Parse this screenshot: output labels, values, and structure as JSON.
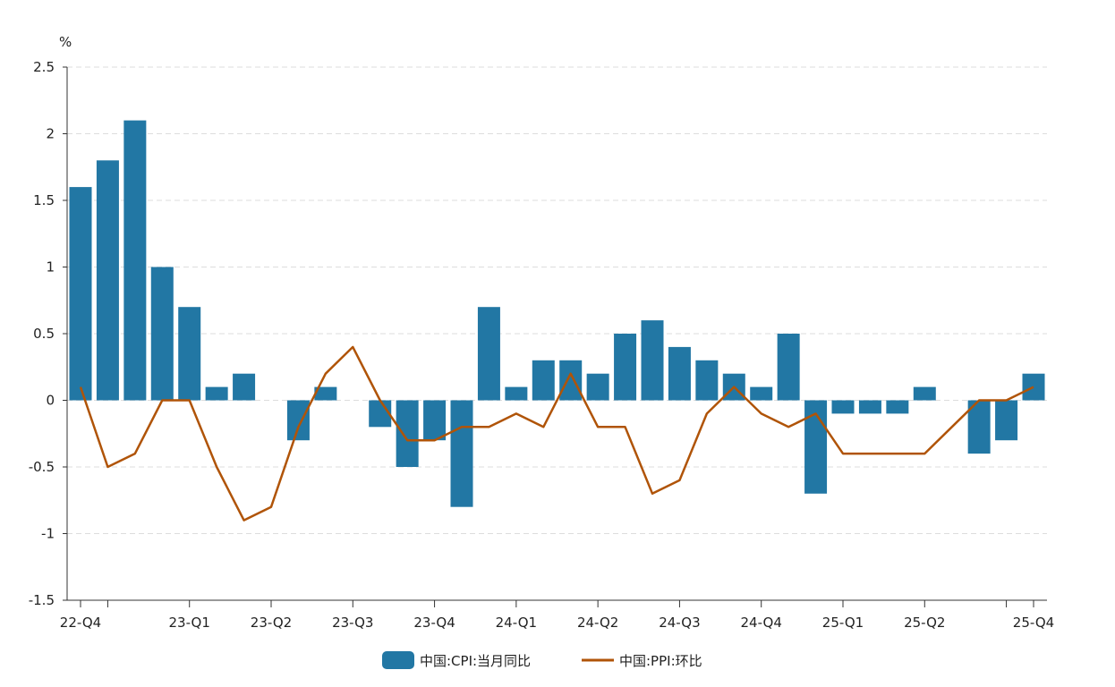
{
  "chart_data": {
    "type": "bar+line",
    "ylabel": "%",
    "ylim": [
      -1.5,
      2.5
    ],
    "yticks": [
      "2.5",
      "2",
      "1.5",
      "1",
      "0.5",
      "0",
      "-0.5",
      "-1",
      "-1.5"
    ],
    "grid": true,
    "n_points": 36,
    "x_labels": [
      {
        "index": 0,
        "label": "22-Q4"
      },
      {
        "index": 4,
        "label": "23-Q1"
      },
      {
        "index": 7,
        "label": "23-Q2"
      },
      {
        "index": 10,
        "label": "23-Q3"
      },
      {
        "index": 13,
        "label": "23-Q4"
      },
      {
        "index": 16,
        "label": "24-Q1"
      },
      {
        "index": 19,
        "label": "24-Q2"
      },
      {
        "index": 22,
        "label": "24-Q3"
      },
      {
        "index": 25,
        "label": "24-Q4"
      },
      {
        "index": 28,
        "label": "25-Q1"
      },
      {
        "index": 31,
        "label": "25-Q2"
      },
      {
        "index": 35,
        "label": "25-Q4"
      }
    ],
    "extra_ticks": [
      1,
      34
    ],
    "series": [
      {
        "name": "中国:CPI:当月同比",
        "type": "bar",
        "color": "#2277a4",
        "values": [
          1.6,
          1.8,
          2.1,
          1.0,
          0.7,
          0.1,
          0.2,
          0,
          -0.3,
          0.1,
          0,
          -0.2,
          -0.5,
          -0.3,
          -0.8,
          0.7,
          0.1,
          0.3,
          0.3,
          0.2,
          0.5,
          0.6,
          0.4,
          0.3,
          0.2,
          0.1,
          0.5,
          -0.7,
          -0.1,
          -0.1,
          -0.1,
          0.1,
          0,
          -0.4,
          -0.3,
          0.2
        ]
      },
      {
        "name": "中国:PPI:环比",
        "type": "line",
        "color": "#b05408",
        "values": [
          0.1,
          -0.5,
          -0.4,
          0,
          0,
          -0.5,
          -0.9,
          -0.8,
          -0.2,
          0.2,
          0.4,
          0,
          -0.3,
          -0.3,
          -0.2,
          -0.2,
          -0.1,
          -0.2,
          0.2,
          -0.2,
          -0.2,
          -0.7,
          -0.6,
          -0.1,
          0.1,
          -0.1,
          -0.2,
          -0.1,
          -0.4,
          -0.4,
          -0.4,
          -0.4,
          -0.2,
          0,
          0,
          0.1
        ]
      }
    ],
    "legend": "bottom-center"
  }
}
